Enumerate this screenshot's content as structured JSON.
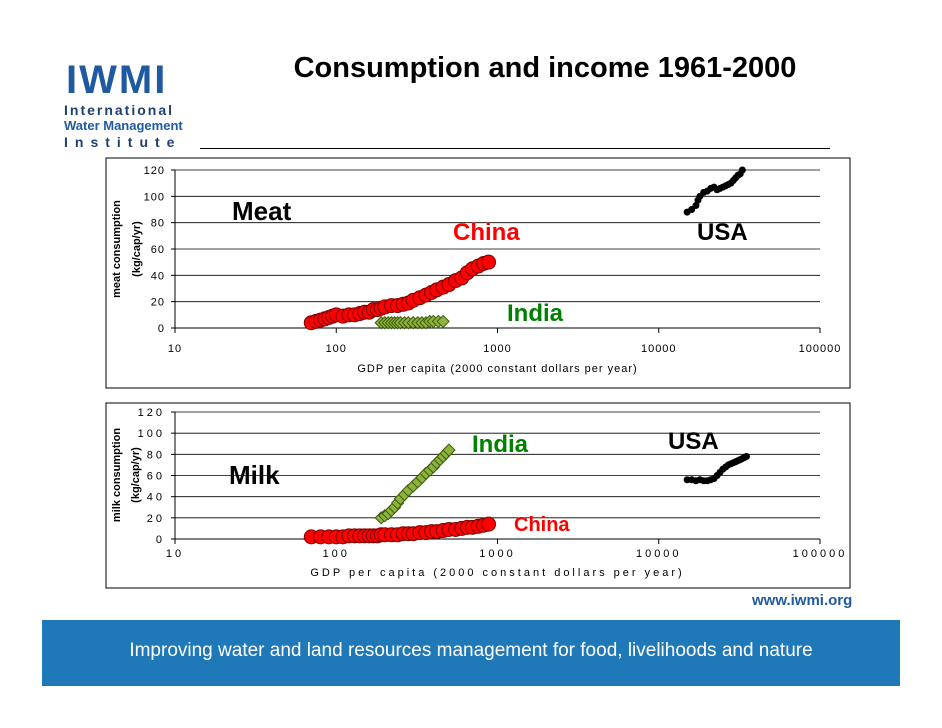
{
  "header": {
    "title": "Consumption and income 1961-2000",
    "logo": {
      "acronym": "IWMI",
      "line1": "International",
      "line2": "Water Management",
      "line3": "Institute"
    }
  },
  "footer": {
    "url": "www.iwmi.org",
    "tagline": "Improving water and land resources management for food, livelihoods and nature"
  },
  "colors": {
    "china": "#ff0000",
    "india": "#8db33a",
    "usa": "#000000",
    "india_label": "#008000",
    "footer_bg": "#1f78b8",
    "logo_blue": "#1f5aa0"
  },
  "chart_data": [
    {
      "type": "scatter",
      "title": "Meat",
      "ylabel": "meat consumption",
      "ylabel_units": "(kg/cap/yr)",
      "xlabel": "GDP per capita (2000 constant dollars per year)",
      "xscale": "log",
      "xlim": [
        10,
        100000
      ],
      "ylim": [
        0,
        120
      ],
      "yticks": [
        0,
        20,
        40,
        60,
        80,
        100,
        120
      ],
      "xticks": [
        "10",
        "100",
        "1000",
        "10000",
        "100000"
      ],
      "grid": "horizontal",
      "series": [
        {
          "name": "China",
          "marker": "circle",
          "x": [
            70,
            75,
            80,
            85,
            90,
            95,
            100,
            110,
            120,
            130,
            140,
            150,
            160,
            170,
            180,
            190,
            200,
            220,
            240,
            260,
            280,
            300,
            330,
            360,
            390,
            420,
            460,
            500,
            550,
            600,
            650,
            700,
            760,
            820,
            880
          ],
          "y": [
            4,
            5,
            6,
            7,
            8,
            9,
            10,
            9,
            10,
            10,
            11,
            12,
            12,
            14,
            14,
            15,
            16,
            17,
            17,
            18,
            19,
            21,
            23,
            25,
            27,
            29,
            31,
            33,
            36,
            38,
            42,
            45,
            47,
            49,
            50
          ]
        },
        {
          "name": "India",
          "marker": "diamond",
          "x": [
            190,
            200,
            210,
            220,
            230,
            240,
            250,
            265,
            280,
            300,
            320,
            340,
            360,
            380,
            400,
            430,
            460
          ],
          "y": [
            4,
            4,
            4,
            4,
            4,
            4,
            4,
            4,
            4,
            4,
            4,
            4,
            4,
            5,
            5,
            5,
            5
          ]
        },
        {
          "name": "USA",
          "marker": "circle-small",
          "x": [
            15000,
            16000,
            17000,
            17500,
            18000,
            19000,
            20000,
            21000,
            22000,
            23000,
            24000,
            25000,
            26000,
            27000,
            28000,
            29000,
            30000,
            31000,
            32000,
            33000
          ],
          "y": [
            88,
            90,
            93,
            97,
            100,
            103,
            104,
            106,
            107,
            105,
            106,
            107,
            108,
            109,
            110,
            112,
            114,
            116,
            117,
            120
          ]
        }
      ],
      "annotations": [
        "Meat",
        "China",
        "India",
        "USA"
      ]
    },
    {
      "type": "scatter",
      "title": "Milk",
      "ylabel": "milk consumption",
      "ylabel_units": "(kg/cap/yr)",
      "xlabel": "GDP per capita (2000 constant dollars per year)",
      "xscale": "log",
      "xlim": [
        10,
        100000
      ],
      "ylim": [
        0,
        120
      ],
      "yticks": [
        0,
        20,
        40,
        60,
        80,
        100,
        120
      ],
      "xticks": [
        "10",
        "100",
        "1000",
        "10000",
        "100000"
      ],
      "grid": "horizontal",
      "series": [
        {
          "name": "China",
          "marker": "circle",
          "x": [
            70,
            80,
            90,
            100,
            110,
            120,
            130,
            140,
            150,
            160,
            170,
            180,
            190,
            200,
            220,
            240,
            260,
            280,
            300,
            330,
            360,
            390,
            420,
            460,
            500,
            550,
            600,
            650,
            700,
            760,
            820,
            880
          ],
          "y": [
            2,
            2,
            2,
            2,
            2,
            3,
            3,
            3,
            3,
            3,
            3,
            3,
            4,
            4,
            4,
            4,
            5,
            5,
            5,
            6,
            6,
            7,
            7,
            8,
            9,
            9,
            10,
            11,
            11,
            12,
            13,
            14
          ]
        },
        {
          "name": "India",
          "marker": "diamond",
          "x": [
            190,
            200,
            210,
            220,
            230,
            240,
            250,
            265,
            280,
            300,
            320,
            340,
            360,
            380,
            400,
            420,
            440,
            460,
            480,
            500
          ],
          "y": [
            20,
            22,
            24,
            27,
            30,
            34,
            38,
            42,
            46,
            50,
            54,
            58,
            62,
            65,
            68,
            72,
            75,
            78,
            81,
            84
          ]
        },
        {
          "name": "USA",
          "marker": "circle-small",
          "x": [
            15000,
            16000,
            17000,
            18000,
            19000,
            20000,
            21000,
            22000,
            23000,
            24000,
            25000,
            26000,
            27000,
            28000,
            29000,
            30000,
            31000,
            32000,
            33000,
            34000,
            35000
          ],
          "y": [
            56,
            56,
            55,
            56,
            55,
            55,
            56,
            57,
            60,
            63,
            66,
            68,
            70,
            71,
            72,
            73,
            74,
            75,
            76,
            77,
            78
          ]
        }
      ],
      "annotations": [
        "Milk",
        "India",
        "China",
        "USA"
      ]
    }
  ]
}
